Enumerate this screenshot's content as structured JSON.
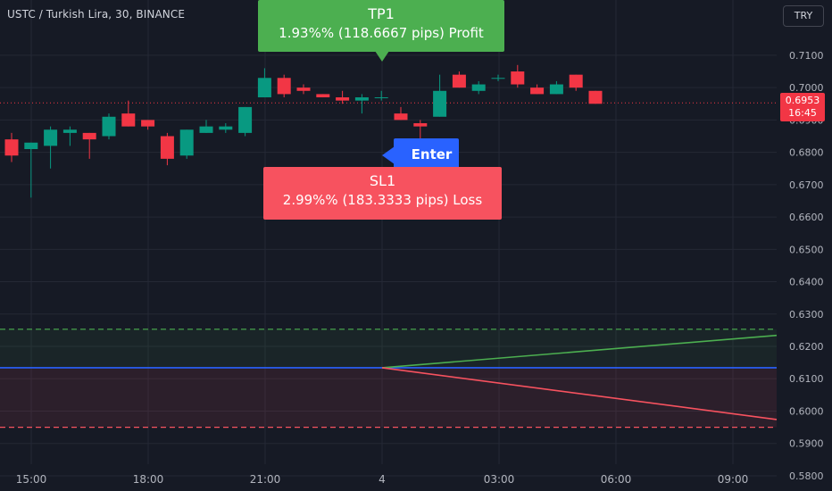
{
  "header": {
    "symbol_title": "USTC / Turkish Lira, 30, BINANCE",
    "currency_label": "TRY"
  },
  "colors": {
    "background": "#161a25",
    "bull": "#089981",
    "bear": "#f23645",
    "take_profit": "#4caf50",
    "stop_loss": "#f7525f",
    "entry": "#2962ff"
  },
  "annotations": {
    "take_profit": {
      "title": "TP1",
      "detail": "1.93%% (118.6667 pips) Profit"
    },
    "stop_loss": {
      "title": "SL1",
      "detail": "2.99%% (183.3333 pips) Loss"
    },
    "entry": {
      "label": "Enter"
    }
  },
  "last_price": {
    "value": "0.6953",
    "countdown": "16:45"
  },
  "price_axis": {
    "ticks": [
      "0.7100",
      "0.7000",
      "0.6900",
      "0.6800",
      "0.6700",
      "0.6600",
      "0.6500",
      "0.6400",
      "0.6300",
      "0.6200",
      "0.6100",
      "0.6000",
      "0.5900",
      "0.5800"
    ]
  },
  "time_axis": {
    "ticks": [
      "15:00",
      "18:00",
      "21:00",
      "4",
      "03:00",
      "06:00",
      "09:00"
    ]
  },
  "chart_data": {
    "type": "candlestick",
    "symbol": "USTC / Turkish Lira",
    "interval": "30",
    "exchange": "BINANCE",
    "ylim": [
      0.5775,
      0.7155
    ],
    "candles": [
      {
        "o": 0.684,
        "h": 0.686,
        "l": 0.677,
        "c": 0.679
      },
      {
        "o": 0.681,
        "h": 0.683,
        "l": 0.666,
        "c": 0.683
      },
      {
        "o": 0.682,
        "h": 0.688,
        "l": 0.675,
        "c": 0.687
      },
      {
        "o": 0.686,
        "h": 0.688,
        "l": 0.682,
        "c": 0.687
      },
      {
        "o": 0.686,
        "h": 0.686,
        "l": 0.678,
        "c": 0.684
      },
      {
        "o": 0.685,
        "h": 0.692,
        "l": 0.684,
        "c": 0.691
      },
      {
        "o": 0.692,
        "h": 0.696,
        "l": 0.688,
        "c": 0.688
      },
      {
        "o": 0.69,
        "h": 0.69,
        "l": 0.687,
        "c": 0.688
      },
      {
        "o": 0.685,
        "h": 0.686,
        "l": 0.676,
        "c": 0.678
      },
      {
        "o": 0.679,
        "h": 0.687,
        "l": 0.678,
        "c": 0.687
      },
      {
        "o": 0.686,
        "h": 0.69,
        "l": 0.686,
        "c": 0.688
      },
      {
        "o": 0.687,
        "h": 0.689,
        "l": 0.686,
        "c": 0.688
      },
      {
        "o": 0.686,
        "h": 0.694,
        "l": 0.685,
        "c": 0.694
      },
      {
        "o": 0.697,
        "h": 0.706,
        "l": 0.697,
        "c": 0.703
      },
      {
        "o": 0.703,
        "h": 0.704,
        "l": 0.697,
        "c": 0.698
      },
      {
        "o": 0.7,
        "h": 0.701,
        "l": 0.698,
        "c": 0.699
      },
      {
        "o": 0.698,
        "h": 0.698,
        "l": 0.697,
        "c": 0.697
      },
      {
        "o": 0.697,
        "h": 0.699,
        "l": 0.695,
        "c": 0.696
      },
      {
        "o": 0.696,
        "h": 0.698,
        "l": 0.692,
        "c": 0.697
      },
      {
        "o": 0.697,
        "h": 0.699,
        "l": 0.696,
        "c": 0.697
      },
      {
        "o": 0.692,
        "h": 0.694,
        "l": 0.69,
        "c": 0.69
      },
      {
        "o": 0.689,
        "h": 0.69,
        "l": 0.684,
        "c": 0.688
      },
      {
        "o": 0.691,
        "h": 0.704,
        "l": 0.691,
        "c": 0.699
      },
      {
        "o": 0.704,
        "h": 0.705,
        "l": 0.7,
        "c": 0.7
      },
      {
        "o": 0.699,
        "h": 0.702,
        "l": 0.698,
        "c": 0.701
      },
      {
        "o": 0.703,
        "h": 0.704,
        "l": 0.702,
        "c": 0.703
      },
      {
        "o": 0.705,
        "h": 0.707,
        "l": 0.7,
        "c": 0.701
      },
      {
        "o": 0.7,
        "h": 0.701,
        "l": 0.698,
        "c": 0.698
      },
      {
        "o": 0.698,
        "h": 0.702,
        "l": 0.698,
        "c": 0.701
      },
      {
        "o": 0.704,
        "h": 0.704,
        "l": 0.699,
        "c": 0.7
      },
      {
        "o": 0.699,
        "h": 0.699,
        "l": 0.695,
        "c": 0.695
      }
    ],
    "position": {
      "entry": 0.6134,
      "take_profit_level": 0.6253,
      "stop_loss_level": 0.595,
      "profit_line_end": 0.6234,
      "loss_line_end": 0.5974
    },
    "last_price": 0.6953,
    "grid": true
  }
}
